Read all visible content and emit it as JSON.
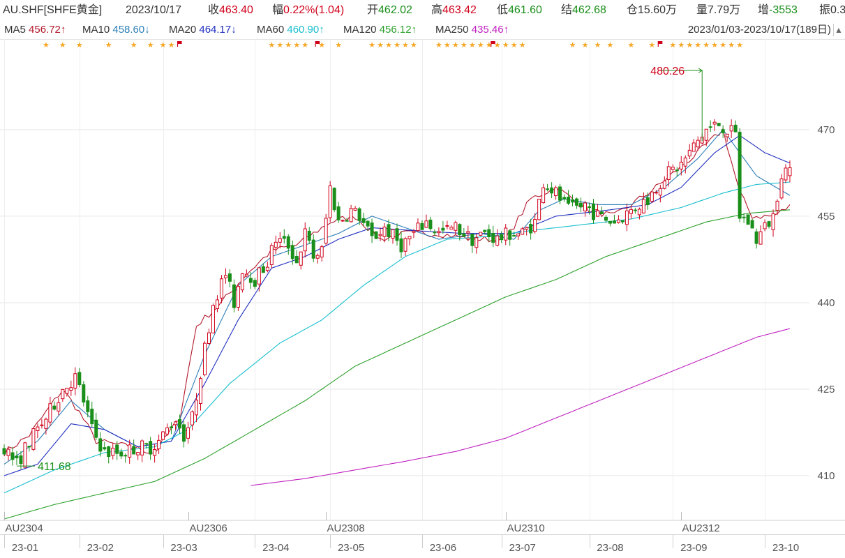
{
  "header": {
    "symbol": "AU.SHF[SHFE黄金]",
    "date": "2023/10/17",
    "close_label": "收",
    "close_value": "463.40",
    "change_label": "幅",
    "change_value": "0.22%(1.04)",
    "open_label": "开",
    "open_value": "462.02",
    "high_label": "高",
    "high_value": "463.42",
    "low_label": "低",
    "low_value": "461.60",
    "settle_label": "结",
    "settle_value": "462.68",
    "oi_label": "仓",
    "oi_value": "15.60万",
    "volume_label": "量",
    "volume_value": "7.79万",
    "oichg_label": "增",
    "oichg_value": "-3553",
    "amp_label": "振",
    "amp_value": "0.3"
  },
  "ma_legend": [
    {
      "label": "MA5",
      "value": "456.72↑",
      "color": "#b2182b"
    },
    {
      "label": "MA10",
      "value": "458.60↓",
      "color": "#2c7fb8"
    },
    {
      "label": "MA20",
      "value": "464.17↓",
      "color": "#1f2fbf"
    },
    {
      "label": "MA60",
      "value": "460.90↑",
      "color": "#17becf"
    },
    {
      "label": "MA120",
      "value": "456.12↑",
      "color": "#2ca02c"
    },
    {
      "label": "MA250",
      "value": "435.46↑",
      "color": "#c020c0"
    }
  ],
  "date_range": "2023/01/03-2023/10/17(189日)",
  "colors": {
    "up": "#d0021b",
    "down": "#1a8f1a",
    "grid": "#e6e6e6",
    "star": "#f5a623"
  },
  "chart_data": {
    "type": "candlestick",
    "y_ticks": [
      410,
      425,
      440,
      455,
      470
    ],
    "ylim": [
      402.5,
      484.5
    ],
    "x_month_labels": [
      "23-01",
      "23-02",
      "23-03",
      "23-04",
      "23-05",
      "23-06",
      "23-07",
      "23-08",
      "23-09",
      "23-10"
    ],
    "x_month_label_index": [
      3,
      21,
      41,
      63,
      81,
      103,
      122,
      143,
      163,
      185
    ],
    "contract_labels": [
      "AU2304",
      "AU2306",
      "AU2308",
      "AU2310",
      "AU2312"
    ],
    "contract_label_index": [
      0,
      44,
      77,
      120,
      162
    ],
    "max_annotation": {
      "label": "480.26",
      "value": 480.26,
      "index": 167
    },
    "min_annotation": {
      "label": "411.68",
      "value": 411.68,
      "index": 3
    },
    "ma_anchors": {
      "MA5": [
        [
          0,
          414
        ],
        [
          6,
          417
        ],
        [
          14,
          425
        ],
        [
          18,
          421
        ],
        [
          22,
          416
        ],
        [
          30,
          415
        ],
        [
          36,
          414
        ],
        [
          42,
          420
        ],
        [
          46,
          436
        ],
        [
          52,
          440
        ],
        [
          58,
          445
        ],
        [
          64,
          449
        ],
        [
          70,
          450
        ],
        [
          78,
          454
        ],
        [
          84,
          455
        ],
        [
          90,
          451
        ],
        [
          96,
          452
        ],
        [
          104,
          452
        ],
        [
          112,
          451
        ],
        [
          120,
          451
        ],
        [
          126,
          458
        ],
        [
          132,
          460
        ],
        [
          140,
          456
        ],
        [
          146,
          455
        ],
        [
          156,
          460
        ],
        [
          166,
          466
        ],
        [
          172,
          470
        ],
        [
          176,
          459
        ],
        [
          179,
          455
        ],
        [
          184,
          455
        ],
        [
          188,
          456.7
        ]
      ],
      "MA10": [
        [
          0,
          412
        ],
        [
          8,
          416
        ],
        [
          16,
          423
        ],
        [
          24,
          418
        ],
        [
          32,
          415
        ],
        [
          40,
          416
        ],
        [
          48,
          431
        ],
        [
          56,
          443
        ],
        [
          64,
          448
        ],
        [
          72,
          450
        ],
        [
          80,
          452
        ],
        [
          88,
          455
        ],
        [
          96,
          453
        ],
        [
          104,
          451
        ],
        [
          114,
          452
        ],
        [
          122,
          451
        ],
        [
          128,
          456
        ],
        [
          134,
          458
        ],
        [
          142,
          457
        ],
        [
          150,
          457
        ],
        [
          158,
          460
        ],
        [
          166,
          465
        ],
        [
          172,
          470
        ],
        [
          180,
          462
        ],
        [
          188,
          458.6
        ]
      ],
      "MA20": [
        [
          0,
          410
        ],
        [
          8,
          412
        ],
        [
          16,
          419
        ],
        [
          24,
          418
        ],
        [
          32,
          415
        ],
        [
          40,
          416
        ],
        [
          48,
          426
        ],
        [
          56,
          437
        ],
        [
          64,
          446
        ],
        [
          72,
          448
        ],
        [
          80,
          451
        ],
        [
          88,
          453
        ],
        [
          98,
          452.5
        ],
        [
          110,
          452
        ],
        [
          122,
          452
        ],
        [
          132,
          455
        ],
        [
          144,
          456
        ],
        [
          154,
          457
        ],
        [
          162,
          460
        ],
        [
          170,
          466
        ],
        [
          176,
          469
        ],
        [
          182,
          466
        ],
        [
          188,
          464.2
        ]
      ],
      "MA60": [
        [
          0,
          407
        ],
        [
          12,
          411
        ],
        [
          24,
          414
        ],
        [
          36,
          415
        ],
        [
          44,
          418
        ],
        [
          54,
          426
        ],
        [
          66,
          433
        ],
        [
          76,
          437
        ],
        [
          86,
          443
        ],
        [
          96,
          448
        ],
        [
          106,
          451
        ],
        [
          116,
          451.5
        ],
        [
          126,
          452.5
        ],
        [
          138,
          453.5
        ],
        [
          150,
          454.5
        ],
        [
          162,
          456.5
        ],
        [
          172,
          459
        ],
        [
          180,
          460.5
        ],
        [
          188,
          460.9
        ]
      ],
      "MA120": [
        [
          0,
          402.5
        ],
        [
          12,
          405
        ],
        [
          24,
          407
        ],
        [
          36,
          409
        ],
        [
          48,
          413
        ],
        [
          60,
          418
        ],
        [
          72,
          423
        ],
        [
          84,
          429
        ],
        [
          96,
          433
        ],
        [
          108,
          437
        ],
        [
          120,
          441
        ],
        [
          132,
          444
        ],
        [
          144,
          448
        ],
        [
          156,
          451
        ],
        [
          168,
          454
        ],
        [
          178,
          455.5
        ],
        [
          188,
          456.1
        ]
      ],
      "MA250": [
        [
          59,
          408.3
        ],
        [
          72,
          409.5
        ],
        [
          84,
          411
        ],
        [
          96,
          412.5
        ],
        [
          108,
          414.2
        ],
        [
          120,
          416.5
        ],
        [
          132,
          420
        ],
        [
          144,
          423.5
        ],
        [
          156,
          427
        ],
        [
          168,
          430.5
        ],
        [
          180,
          434
        ],
        [
          188,
          435.5
        ]
      ]
    },
    "close_anchors": [
      [
        0,
        415
      ],
      [
        3,
        412
      ],
      [
        6,
        416
      ],
      [
        10,
        420
      ],
      [
        14,
        425
      ],
      [
        17,
        427
      ],
      [
        19,
        423
      ],
      [
        21,
        418
      ],
      [
        24,
        414
      ],
      [
        28,
        414
      ],
      [
        32,
        415
      ],
      [
        35,
        415
      ],
      [
        37,
        416
      ],
      [
        41,
        420
      ],
      [
        43,
        417
      ],
      [
        45,
        420
      ],
      [
        47,
        428
      ],
      [
        50,
        440
      ],
      [
        53,
        445
      ],
      [
        55,
        440
      ],
      [
        57,
        446
      ],
      [
        60,
        444
      ],
      [
        63,
        447
      ],
      [
        65,
        451
      ],
      [
        68,
        450
      ],
      [
        70,
        447
      ],
      [
        72,
        452
      ],
      [
        74,
        448
      ],
      [
        76,
        449
      ],
      [
        78,
        460
      ],
      [
        80,
        454
      ],
      [
        83,
        456
      ],
      [
        85,
        455
      ],
      [
        88,
        451
      ],
      [
        91,
        453
      ],
      [
        95,
        450
      ],
      [
        98,
        452
      ],
      [
        101,
        454
      ],
      [
        104,
        452
      ],
      [
        108,
        453
      ],
      [
        112,
        451
      ],
      [
        115,
        452
      ],
      [
        118,
        451
      ],
      [
        121,
        452
      ],
      [
        124,
        452
      ],
      [
        127,
        454
      ],
      [
        129,
        461
      ],
      [
        132,
        459
      ],
      [
        135,
        456
      ],
      [
        139,
        457
      ],
      [
        142,
        455
      ],
      [
        146,
        454
      ],
      [
        150,
        456
      ],
      [
        154,
        458
      ],
      [
        158,
        462
      ],
      [
        162,
        464
      ],
      [
        165,
        467
      ],
      [
        168,
        470
      ],
      [
        171,
        471
      ],
      [
        173,
        470
      ],
      [
        175,
        469
      ],
      [
        176,
        455
      ],
      [
        178,
        454
      ],
      [
        180,
        451
      ],
      [
        182,
        453
      ],
      [
        184,
        455
      ],
      [
        186,
        462.7
      ],
      [
        188,
        463.4
      ]
    ],
    "n_bars": 189
  }
}
